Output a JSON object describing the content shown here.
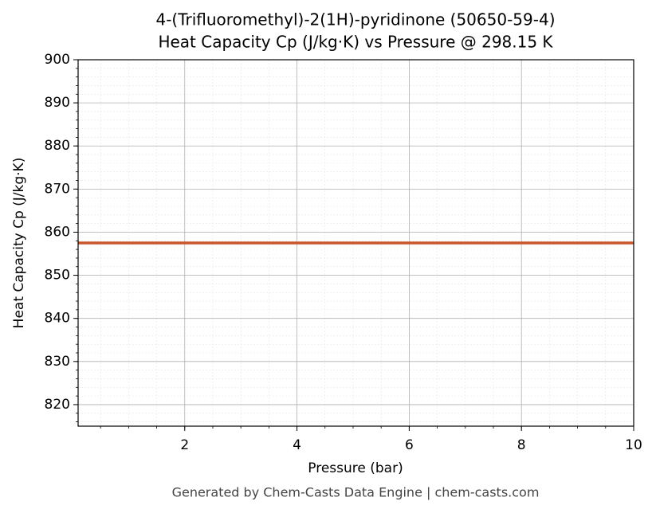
{
  "chart_data": {
    "type": "line",
    "title": "4-(Trifluoromethyl)-2(1H)-pyridinone (50650-59-4)",
    "subtitle": "Heat Capacity Cp (J/kg·K) vs Pressure @ 298.15 K",
    "x_label": "Pressure (bar)",
    "y_label": "Heat Capacity Cp (J/kg·K)",
    "footer": "Generated by Chem-Casts Data Engine | chem-casts.com",
    "x": [
      0.1,
      1,
      2,
      3,
      4,
      5,
      6,
      7,
      8,
      9,
      10
    ],
    "series": [
      {
        "name": "Cp",
        "color": "#c8552b",
        "values": [
          857.5,
          857.5,
          857.5,
          857.5,
          857.5,
          857.5,
          857.5,
          857.5,
          857.5,
          857.5,
          857.5
        ]
      }
    ],
    "xlim": [
      0.1,
      10
    ],
    "ylim": [
      815,
      900
    ],
    "xticks": [
      2,
      4,
      6,
      8,
      10
    ],
    "yticks": [
      820,
      830,
      840,
      850,
      860,
      870,
      880,
      890,
      900
    ],
    "grid": true
  }
}
